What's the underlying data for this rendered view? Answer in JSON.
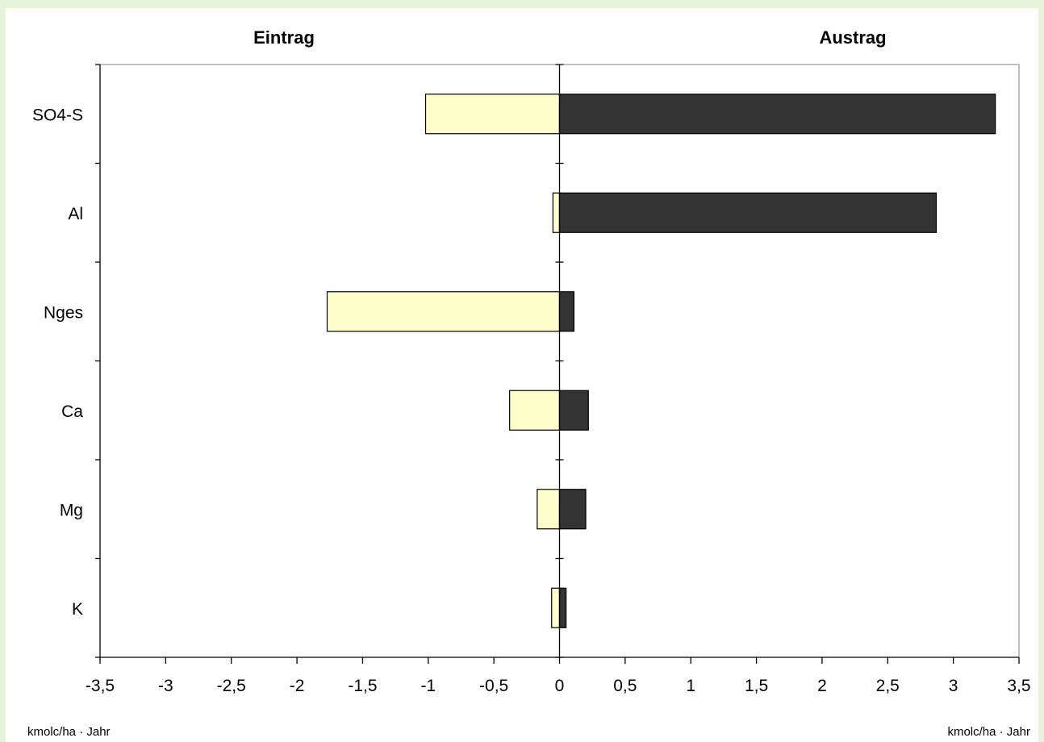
{
  "chart_data": {
    "type": "bar",
    "orientation": "horizontal",
    "title_left": "Eintrag",
    "title_right": "Austrag",
    "categories": [
      "SO4-S",
      "Al",
      "Nges",
      "Ca",
      "Mg",
      "K"
    ],
    "series": [
      {
        "key": "eintrag",
        "values": [
          -1.02,
          -0.05,
          -1.77,
          -0.38,
          -0.17,
          -0.06
        ],
        "color": "#ffffcc"
      },
      {
        "key": "austrag",
        "values": [
          3.32,
          2.87,
          0.11,
          0.22,
          0.2,
          0.05
        ],
        "color": "#333333"
      }
    ],
    "xlim": [
      -3.5,
      3.5
    ],
    "xticks": [
      -3.5,
      -3,
      -2.5,
      -2,
      -1.5,
      -1,
      -0.5,
      0,
      0.5,
      1,
      1.5,
      2,
      2.5,
      3,
      3.5
    ],
    "xtick_labels": [
      "-3,5",
      "-3",
      "-2,5",
      "-2",
      "-1,5",
      "-1",
      "-0,5",
      "0",
      "0,5",
      "1",
      "1,5",
      "2",
      "2,5",
      "3",
      "3,5"
    ],
    "unit_left": "kmolc/ha · Jahr",
    "unit_right": "kmolc/ha · Jahr",
    "grid": false,
    "legend": "none"
  }
}
